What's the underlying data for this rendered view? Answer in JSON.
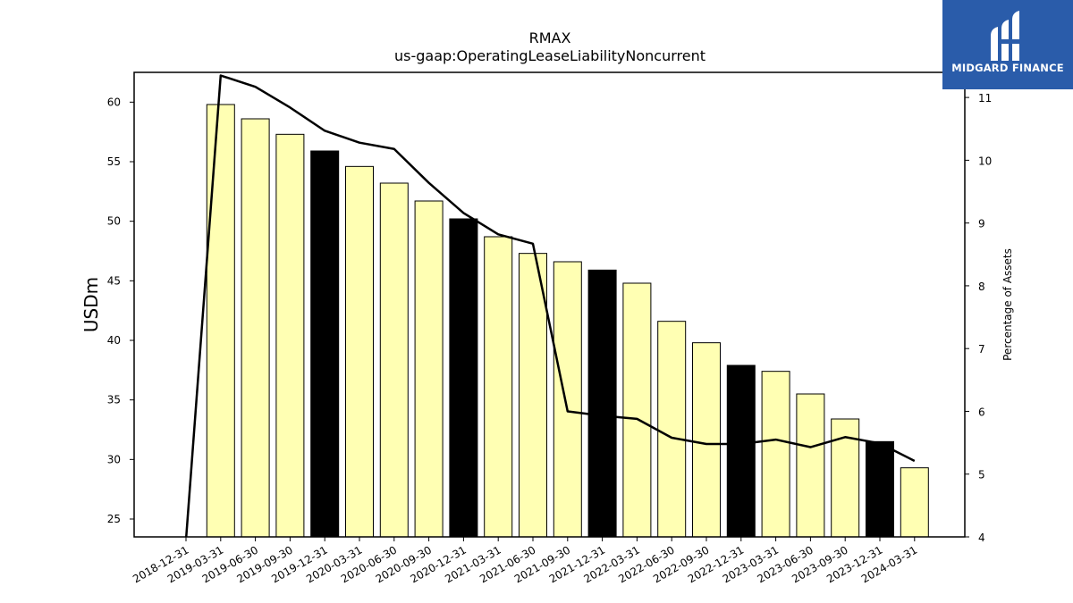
{
  "brand": {
    "name": "MIDGARD FINANCE",
    "bg_color": "#2a5caa"
  },
  "chart_data": {
    "type": "bar",
    "title": "RMAX",
    "subtitle": "us-gaap:OperatingLeaseLiabilityNoncurrent",
    "ylabel": "USDm",
    "y2label": "Percentage of Assets",
    "ylim": [
      23.5,
      62.5
    ],
    "y2lim": [
      4.0,
      11.4
    ],
    "yticks": [
      25,
      30,
      35,
      40,
      45,
      50,
      55,
      60
    ],
    "y2ticks": [
      4,
      5,
      6,
      7,
      8,
      9,
      10,
      11
    ],
    "categories": [
      "2018-12-31",
      "2019-03-31",
      "2019-06-30",
      "2019-09-30",
      "2019-12-31",
      "2020-03-31",
      "2020-06-30",
      "2020-09-30",
      "2020-12-31",
      "2021-03-31",
      "2021-06-30",
      "2021-09-30",
      "2021-12-31",
      "2022-03-31",
      "2022-06-30",
      "2022-09-30",
      "2022-12-31",
      "2023-03-31",
      "2023-06-30",
      "2023-09-30",
      "2023-12-31",
      "2024-03-31"
    ],
    "series": [
      {
        "type": "bar",
        "axis": "left",
        "values": [
          null,
          59.8,
          58.6,
          57.3,
          55.9,
          54.6,
          53.2,
          51.7,
          50.2,
          48.7,
          47.3,
          46.6,
          45.9,
          44.8,
          41.6,
          39.8,
          37.9,
          37.4,
          35.5,
          33.4,
          31.5,
          29.3
        ],
        "colors": [
          "#ffffb3",
          "#ffffb3",
          "#ffffb3",
          "#ffffb3",
          "#000000",
          "#ffffb3",
          "#ffffb3",
          "#ffffb3",
          "#000000",
          "#ffffb3",
          "#ffffb3",
          "#ffffb3",
          "#000000",
          "#ffffb3",
          "#ffffb3",
          "#ffffb3",
          "#000000",
          "#ffffb3",
          "#ffffb3",
          "#ffffb3",
          "#000000",
          "#ffffb3"
        ]
      },
      {
        "type": "line",
        "axis": "right",
        "values": [
          3.95,
          11.35,
          11.17,
          10.84,
          10.47,
          10.28,
          10.18,
          9.64,
          9.16,
          8.82,
          8.67,
          6.0,
          5.93,
          5.88,
          5.58,
          5.48,
          5.48,
          5.55,
          5.43,
          5.59,
          5.49,
          5.21
        ],
        "color": "#000000"
      }
    ],
    "grid": false,
    "legend": "none"
  }
}
